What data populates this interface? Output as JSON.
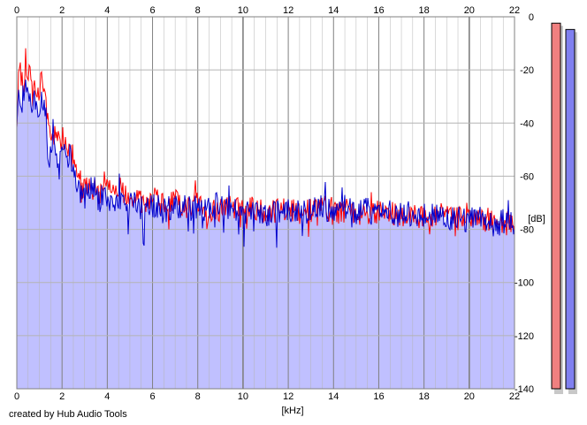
{
  "credit": "created by Hub Audio Tools",
  "chart_data": {
    "type": "area",
    "xlabel": "[kHz]",
    "ylabel": "[dB]",
    "xlim": [
      0,
      22
    ],
    "ylim": [
      -140,
      0
    ],
    "xticks": [
      "0",
      "2",
      "4",
      "6",
      "8",
      "10",
      "12",
      "14",
      "16",
      "18",
      "20",
      "22"
    ],
    "yticks": [
      "0",
      "-20",
      "-40",
      "-60",
      "-80",
      "-100",
      "-120",
      "-140"
    ],
    "grid": true,
    "colors": {
      "fill": "#c0c0ff",
      "red_series": "#ff0000",
      "blue_series": "#0000cc",
      "grid": "#b4b4b4",
      "major_grid": "#808080",
      "meter_left": "#f08080",
      "meter_right": "#8080f0"
    },
    "series": [
      {
        "color": "red",
        "x": [
          0,
          0.1,
          0.2,
          0.3,
          0.4,
          0.5,
          0.6,
          0.7,
          0.8,
          0.9,
          1.0,
          1.1,
          1.2,
          1.3,
          1.4,
          1.5,
          1.6,
          1.8,
          2.0,
          2.2,
          2.4,
          2.6,
          2.8,
          3.0,
          3.2,
          3.4,
          3.6,
          3.8,
          4.0,
          4.2,
          4.4,
          4.6,
          4.8,
          5.0,
          5.5,
          6.0,
          6.5,
          7.0,
          7.5,
          8.0,
          8.5,
          9.0,
          9.5,
          10.0,
          10.5,
          11.0,
          11.5,
          12.0,
          12.5,
          13.0,
          13.5,
          14.0,
          14.5,
          15.0,
          15.5,
          16.0,
          16.5,
          17.0,
          17.5,
          18.0,
          18.5,
          19.0,
          19.5,
          20.0,
          20.5,
          21.0,
          21.5,
          22.0
        ],
        "values": [
          -38,
          -17,
          -22,
          -28,
          -15,
          -25,
          -20,
          -30,
          -24,
          -28,
          -30,
          -22,
          -28,
          -32,
          -42,
          -45,
          -43,
          -47,
          -45,
          -48,
          -50,
          -55,
          -62,
          -63,
          -65,
          -62,
          -67,
          -64,
          -60,
          -66,
          -68,
          -64,
          -68,
          -66,
          -70,
          -68,
          -71,
          -69,
          -72,
          -70,
          -74,
          -72,
          -71,
          -73,
          -72,
          -74,
          -73,
          -72,
          -74,
          -73,
          -72,
          -74,
          -73,
          -74,
          -75,
          -73,
          -74,
          -75,
          -74,
          -76,
          -74,
          -75,
          -76,
          -75,
          -77,
          -76,
          -78,
          -78
        ]
      },
      {
        "color": "blue",
        "x": [
          0,
          0.1,
          0.2,
          0.3,
          0.4,
          0.5,
          0.6,
          0.7,
          0.8,
          0.9,
          1.0,
          1.1,
          1.2,
          1.3,
          1.4,
          1.5,
          1.6,
          1.8,
          2.0,
          2.2,
          2.4,
          2.6,
          2.8,
          3.0,
          3.2,
          3.4,
          3.6,
          3.8,
          4.0,
          4.2,
          4.4,
          4.6,
          4.8,
          5.0,
          5.5,
          6.0,
          6.5,
          7.0,
          7.5,
          8.0,
          8.5,
          9.0,
          9.5,
          10.0,
          10.5,
          11.0,
          11.5,
          12.0,
          12.5,
          13.0,
          13.5,
          14.0,
          14.5,
          15.0,
          15.5,
          16.0,
          16.5,
          17.0,
          17.5,
          18.0,
          18.5,
          19.0,
          19.5,
          20.0,
          20.5,
          21.0,
          21.5,
          22.0
        ],
        "values": [
          -42,
          -28,
          -33,
          -30,
          -25,
          -32,
          -30,
          -35,
          -31,
          -33,
          -34,
          -30,
          -33,
          -35,
          -55,
          -50,
          -48,
          -52,
          -50,
          -53,
          -55,
          -60,
          -65,
          -68,
          -66,
          -64,
          -70,
          -67,
          -70,
          -69,
          -71,
          -68,
          -72,
          -70,
          -72,
          -71,
          -73,
          -71,
          -72,
          -72,
          -73,
          -70,
          -72,
          -74,
          -72,
          -74,
          -73,
          -72,
          -74,
          -73,
          -72,
          -73,
          -72,
          -74,
          -73,
          -74,
          -74,
          -75,
          -74,
          -75,
          -74,
          -76,
          -75,
          -77,
          -76,
          -78,
          -77,
          -78
        ]
      }
    ],
    "level_meters": [
      {
        "channel": "left",
        "level_db": -1.5
      },
      {
        "channel": "right",
        "level_db": -6.3
      }
    ]
  }
}
